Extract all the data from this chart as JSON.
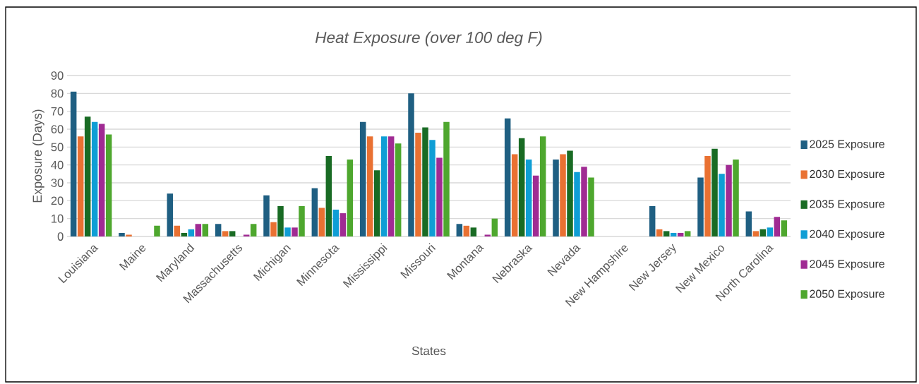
{
  "chart_data": {
    "type": "bar",
    "title": "*Heat Exposure (over 100 deg F)*",
    "xlabel": "States",
    "ylabel": "Exposure (Days)",
    "categories": [
      "Louisiana",
      "Maine",
      "Maryland",
      "Massachusetts",
      "Michigan",
      "Minnesota",
      "Mississippi",
      "Missouri",
      "Montana",
      "Nebraska",
      "Nevada",
      "New Hampshire",
      "New Jersey",
      "New Mexico",
      "North Carolina"
    ],
    "series": [
      {
        "name": "2025 Exposure",
        "color": "#1f5f82",
        "values": [
          81,
          2,
          24,
          7,
          23,
          27,
          64,
          80,
          7,
          66,
          43,
          0,
          17,
          33,
          14
        ]
      },
      {
        "name": "2030 Exposure",
        "color": "#e97132",
        "values": [
          56,
          1,
          6,
          3,
          8,
          16,
          56,
          58,
          6,
          46,
          46,
          0,
          4,
          45,
          3
        ]
      },
      {
        "name": "2035 Exposure",
        "color": "#196b24",
        "values": [
          67,
          0,
          2,
          3,
          17,
          45,
          37,
          61,
          5,
          55,
          48,
          0,
          3,
          49,
          4
        ]
      },
      {
        "name": "2040 Exposure",
        "color": "#0f9ed5",
        "values": [
          64,
          0,
          4,
          0,
          5,
          15,
          56,
          54,
          0,
          43,
          36,
          0,
          2,
          35,
          5
        ]
      },
      {
        "name": "2045 Exposure",
        "color": "#a02b93",
        "values": [
          63,
          0,
          7,
          1,
          5,
          13,
          56,
          44,
          1,
          34,
          39,
          0,
          2,
          40,
          11
        ]
      },
      {
        "name": "2050 Exposure",
        "color": "#4ea72e",
        "values": [
          57,
          6,
          7,
          7,
          17,
          43,
          52,
          64,
          10,
          56,
          33,
          0,
          3,
          43,
          9
        ]
      }
    ],
    "ylim": [
      0,
      90
    ],
    "yticks": [
      0,
      10,
      20,
      30,
      40,
      50,
      60,
      70,
      80,
      90
    ],
    "grid": "y",
    "legend": "right"
  }
}
